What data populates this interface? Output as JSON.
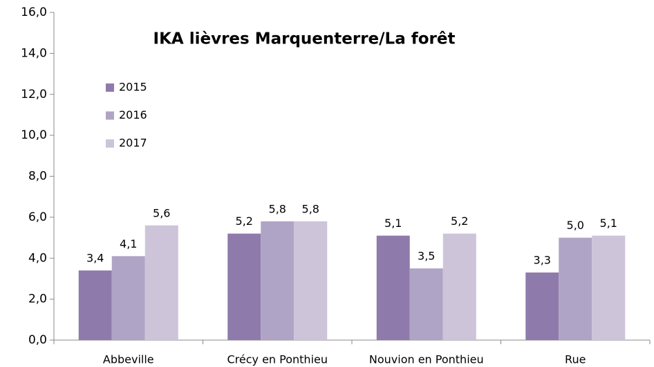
{
  "chart_data": {
    "type": "bar",
    "title": "IKA lièvres Marquenterre/La forêt",
    "categories": [
      "Abbeville",
      "Crécy en Ponthieu",
      "Nouvion en Ponthieu",
      "Rue"
    ],
    "series": [
      {
        "name": "2015",
        "color": "#8e7bab",
        "values": [
          3.4,
          5.2,
          5.1,
          3.3
        ],
        "value_labels": [
          "3,4",
          "5,2",
          "5,1",
          "3,3"
        ]
      },
      {
        "name": "2016",
        "color": "#b0a4c6",
        "values": [
          4.1,
          5.8,
          3.5,
          5.0
        ],
        "value_labels": [
          "4,1",
          "5,8",
          "3,5",
          "5,0"
        ]
      },
      {
        "name": "2017",
        "color": "#cdc4da",
        "values": [
          5.6,
          5.8,
          5.2,
          5.1
        ],
        "value_labels": [
          "5,6",
          "5,8",
          "5,2",
          "5,1"
        ]
      }
    ],
    "ylim": [
      0,
      16
    ],
    "yticks": [
      {
        "value": 0,
        "label": "0,0"
      },
      {
        "value": 2,
        "label": "2,0"
      },
      {
        "value": 4,
        "label": "4,0"
      },
      {
        "value": 6,
        "label": "6,0"
      },
      {
        "value": 8,
        "label": "8,0"
      },
      {
        "value": 10,
        "label": "10,0"
      },
      {
        "value": 12,
        "label": "12,0"
      },
      {
        "value": 14,
        "label": "14,0"
      },
      {
        "value": 16,
        "label": "16,0"
      }
    ],
    "legend": "upper left",
    "grid": false
  }
}
